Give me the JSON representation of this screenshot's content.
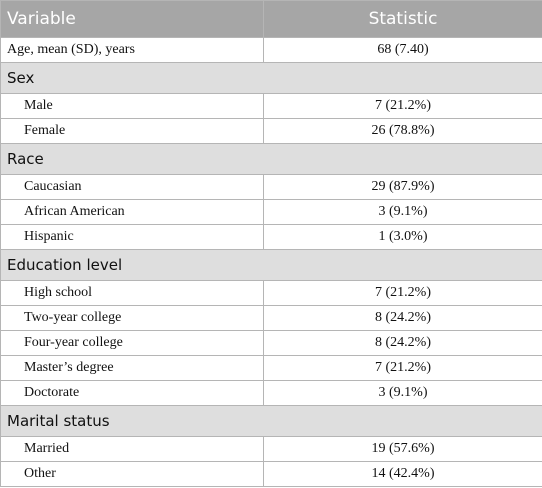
{
  "table": {
    "header": [
      "Variable",
      "Statistic"
    ],
    "rows": [
      [
        "Age, mean (SD), years",
        "68 (7.40)"
      ]
    ],
    "sections": [
      {
        "title": "Sex",
        "rows": [
          [
            "Male",
            "7 (21.2%)"
          ],
          [
            "Female",
            "26 (78.8%)"
          ]
        ]
      },
      {
        "title": "Race",
        "rows": [
          [
            "Caucasian",
            "29 (87.9%)"
          ],
          [
            "African American",
            "3 (9.1%)"
          ],
          [
            "Hispanic",
            "1 (3.0%)"
          ]
        ]
      },
      {
        "title": "Education level",
        "rows": [
          [
            "High school",
            "7 (21.2%)"
          ],
          [
            "Two-year college",
            "8 (24.2%)"
          ],
          [
            "Four-year college",
            "8 (24.2%)"
          ],
          [
            "Master’s degree",
            "7 (21.2%)"
          ],
          [
            "Doctorate",
            "3 (9.1%)"
          ]
        ]
      },
      {
        "title": "Marital status",
        "rows": [
          [
            "Married",
            "19 (57.6%)"
          ],
          [
            "Other",
            "14 (42.4%)"
          ]
        ]
      }
    ]
  }
}
